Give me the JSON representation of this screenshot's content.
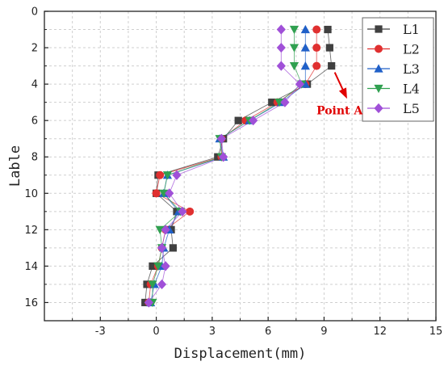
{
  "chart_data": {
    "type": "scatter",
    "title": "",
    "xlabel": "Displacement(mm)",
    "ylabel": "Lable",
    "xlim": [
      -6,
      15
    ],
    "ylim": [
      0,
      17
    ],
    "y_inverted": true,
    "x_ticks": [
      -3,
      0,
      3,
      6,
      9,
      12,
      15
    ],
    "y_ticks": [
      0,
      2,
      4,
      6,
      8,
      10,
      12,
      14,
      16
    ],
    "grid": true,
    "legend_position": "top-right",
    "y": [
      1,
      2,
      3,
      4,
      5,
      6,
      7,
      8,
      9,
      10,
      11,
      12,
      13,
      14,
      15,
      16
    ],
    "series": [
      {
        "name": "L1",
        "color": "#404040",
        "marker": "square",
        "x": [
          9.2,
          9.3,
          9.4,
          8.1,
          6.2,
          4.4,
          3.6,
          3.3,
          0.1,
          0.0,
          1.1,
          0.8,
          0.9,
          -0.2,
          -0.5,
          -0.6
        ]
      },
      {
        "name": "L2",
        "color": "#e03030",
        "marker": "circle",
        "x": [
          8.6,
          8.6,
          8.6,
          8.0,
          6.5,
          4.8,
          3.5,
          3.5,
          0.2,
          0.0,
          1.8,
          0.5,
          0.3,
          0.1,
          -0.3,
          -0.4
        ]
      },
      {
        "name": "L3",
        "color": "#2060c8",
        "marker": "triangle-up",
        "x": [
          8.0,
          8.0,
          8.0,
          8.0,
          6.7,
          5.0,
          3.4,
          3.6,
          0.6,
          0.4,
          1.2,
          0.7,
          0.4,
          0.3,
          -0.1,
          -0.3
        ]
      },
      {
        "name": "L4",
        "color": "#30a050",
        "marker": "triangle-down",
        "x": [
          7.4,
          7.4,
          7.4,
          7.8,
          6.6,
          5.0,
          3.4,
          3.5,
          0.6,
          0.4,
          1.3,
          0.2,
          0.3,
          0.1,
          -0.2,
          -0.2
        ]
      },
      {
        "name": "L5",
        "color": "#a050d8",
        "marker": "diamond",
        "x": [
          6.7,
          6.7,
          6.7,
          7.7,
          6.9,
          5.2,
          3.5,
          3.6,
          1.1,
          0.7,
          1.4,
          0.5,
          0.3,
          0.5,
          0.3,
          -0.4
        ]
      }
    ],
    "annotations": [
      {
        "text": "Point A",
        "color": "#e00000",
        "points_to_series": "L1",
        "points_to_y": 3
      }
    ]
  }
}
